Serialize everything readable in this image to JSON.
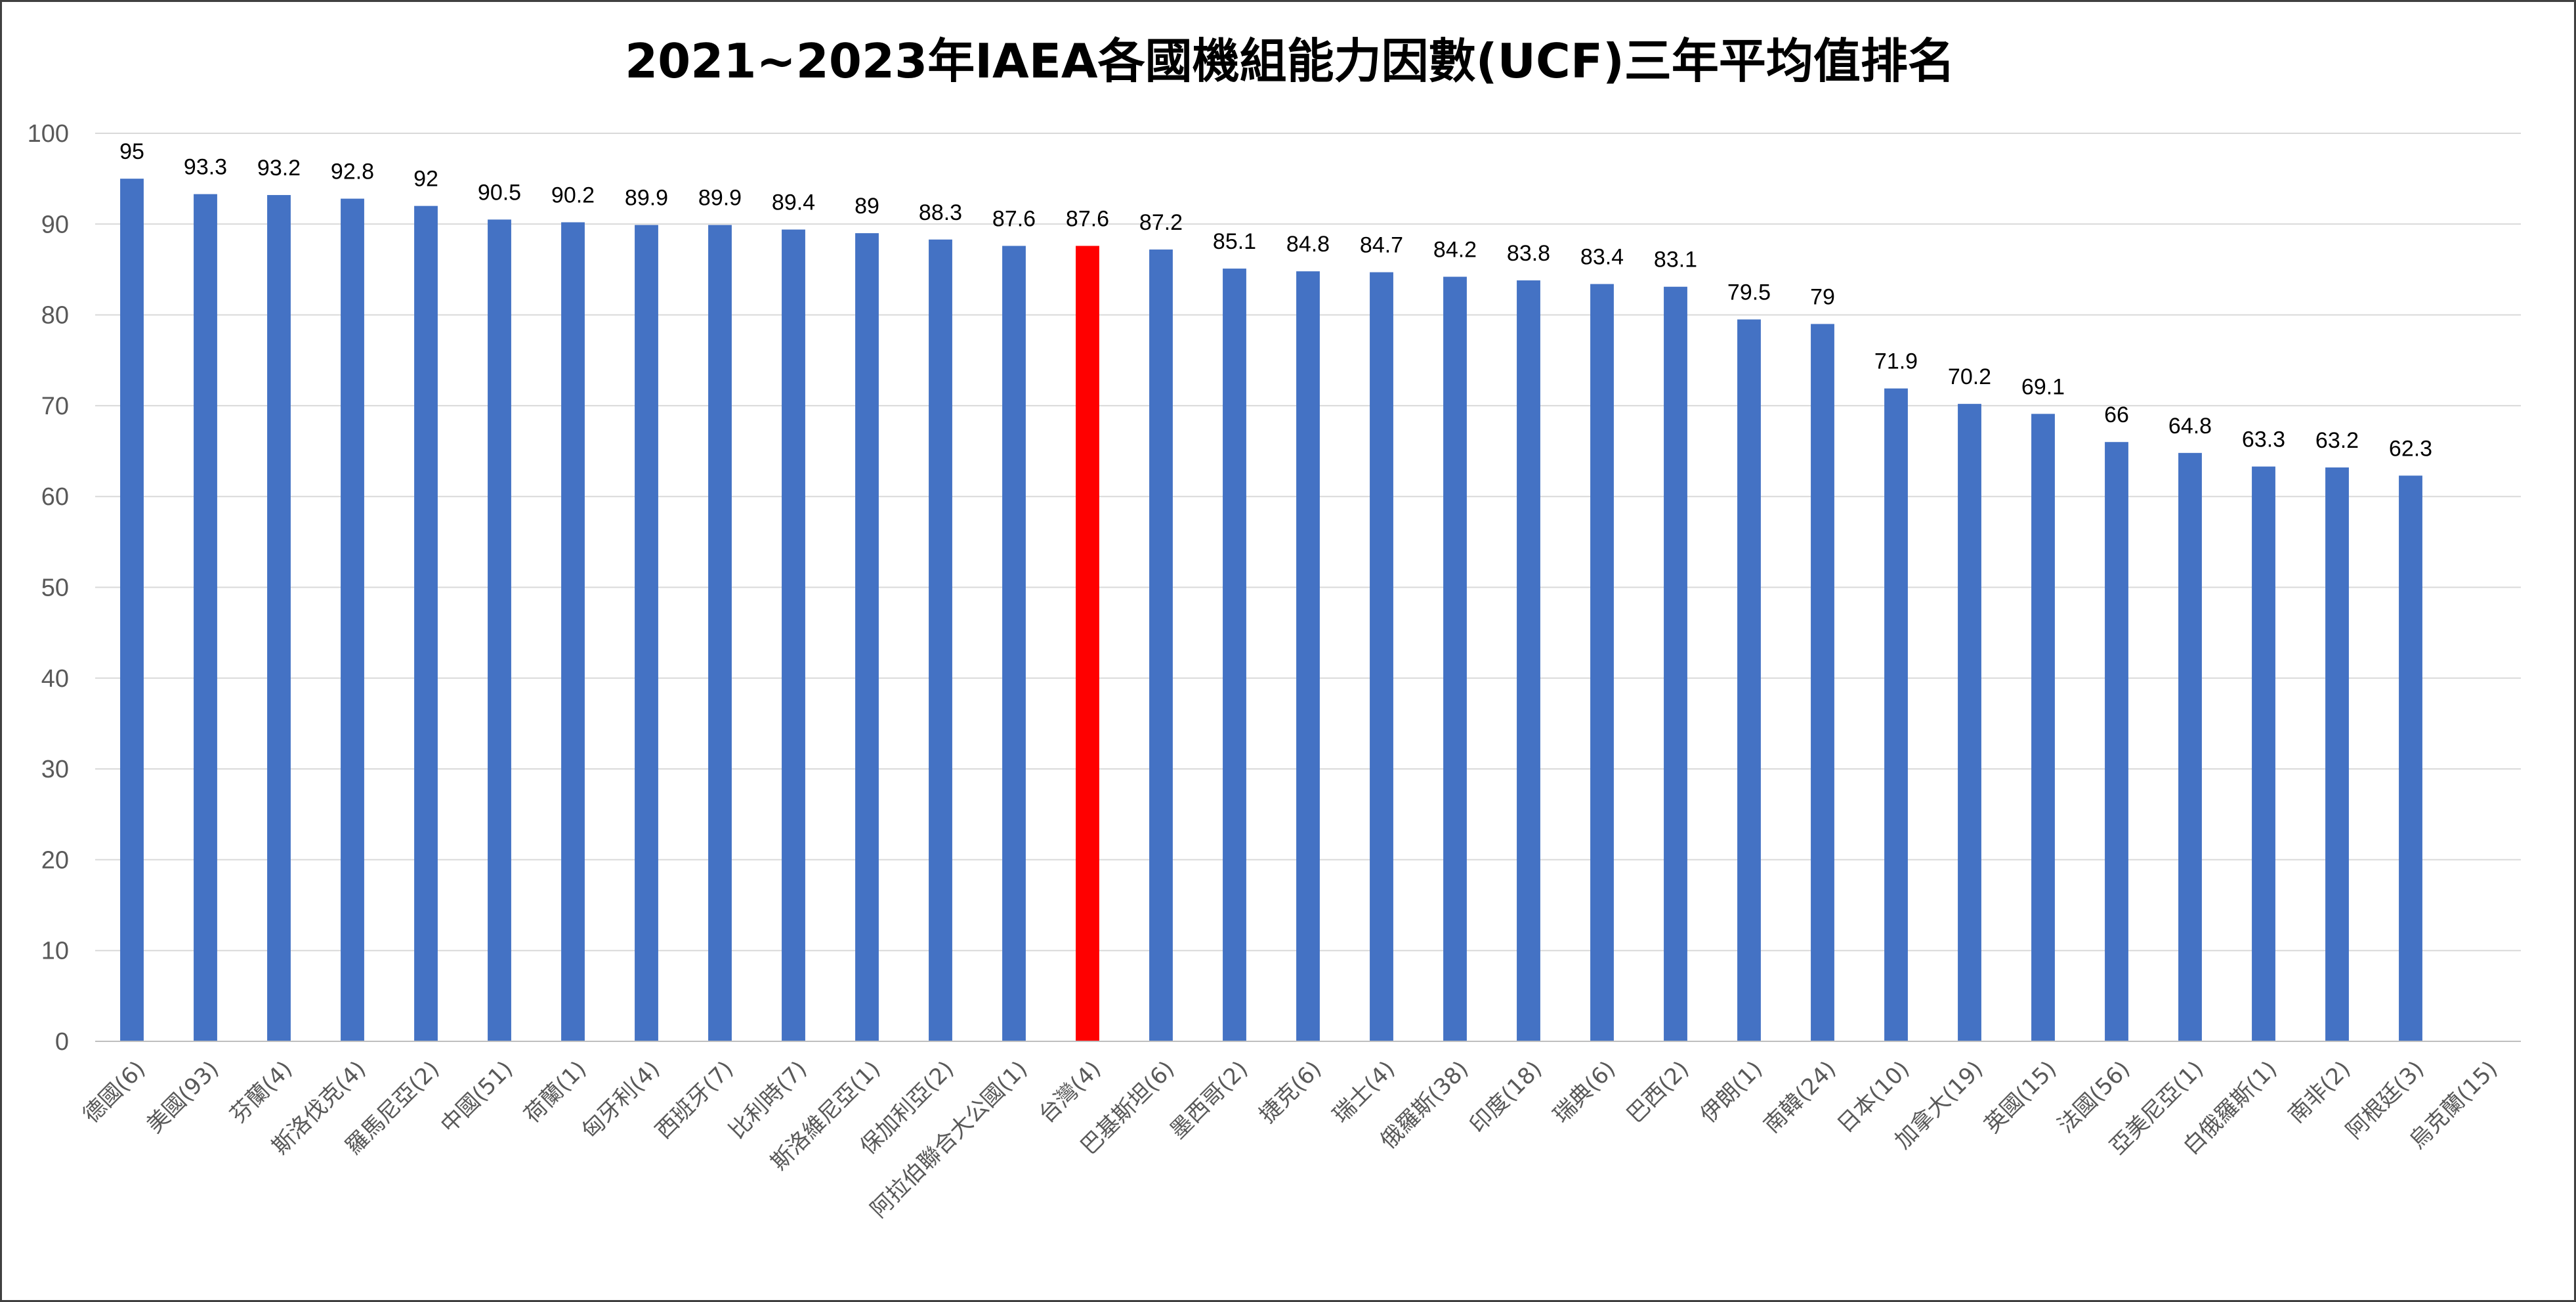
{
  "chart_data": {
    "type": "bar",
    "title": "2021~2023年IAEA各國機組能力因數(UCF)三年平均值排名",
    "xlabel": "",
    "ylabel": "",
    "ylim": [
      0,
      100
    ],
    "yticks": [
      0,
      10,
      20,
      30,
      40,
      50,
      60,
      70,
      80,
      90,
      100
    ],
    "grid": true,
    "legend": "none",
    "categories": [
      "德國(6)",
      "美國(93)",
      "芬蘭(4)",
      "斯洛伐克(4)",
      "羅馬尼亞(2)",
      "中國(51)",
      "荷蘭(1)",
      "匈牙利(4)",
      "西班牙(7)",
      "比利時(7)",
      "斯洛維尼亞(1)",
      "保加利亞(2)",
      "阿拉伯聯合大公國(1)",
      "台灣(4)",
      "巴基斯坦(6)",
      "墨西哥(2)",
      "捷克(6)",
      "瑞士(4)",
      "俄羅斯(38)",
      "印度(18)",
      "瑞典(6)",
      "巴西(2)",
      "伊朗(1)",
      "南韓(24)",
      "日本(10)",
      "加拿大(19)",
      "英國(15)",
      "法國(56)",
      "亞美尼亞(1)",
      "白俄羅斯(1)",
      "南非(2)",
      "阿根廷(3)",
      "烏克蘭(15)"
    ],
    "values": [
      95,
      93.3,
      93.2,
      92.8,
      92,
      90.5,
      90.2,
      89.9,
      89.9,
      89.4,
      89,
      88.3,
      87.6,
      87.6,
      87.2,
      85.1,
      84.8,
      84.7,
      84.2,
      83.8,
      83.4,
      83.1,
      79.5,
      79,
      71.9,
      70.2,
      69.1,
      66,
      64.8,
      63.3,
      63.2,
      62.3,
      null
    ],
    "data_labels": [
      "95",
      "93.3",
      "93.2",
      "92.8",
      "92",
      "90.5",
      "90.2",
      "89.9",
      "89.9",
      "89.4",
      "89",
      "88.3",
      "87.6",
      "87.6",
      "87.2",
      "85.1",
      "84.8",
      "84.7",
      "84.2",
      "83.8",
      "83.4",
      "83.1",
      "79.5",
      "79",
      "71.9",
      "70.2",
      "69.1",
      "66",
      "64.8",
      "63.3",
      "63.2",
      "62.3",
      ""
    ],
    "bar_color": "#4472C4",
    "highlight_color": "#FF0000",
    "highlight_index": 13,
    "gridline_color": "#D9D9D9",
    "axis_color": "#BFBFBF"
  }
}
